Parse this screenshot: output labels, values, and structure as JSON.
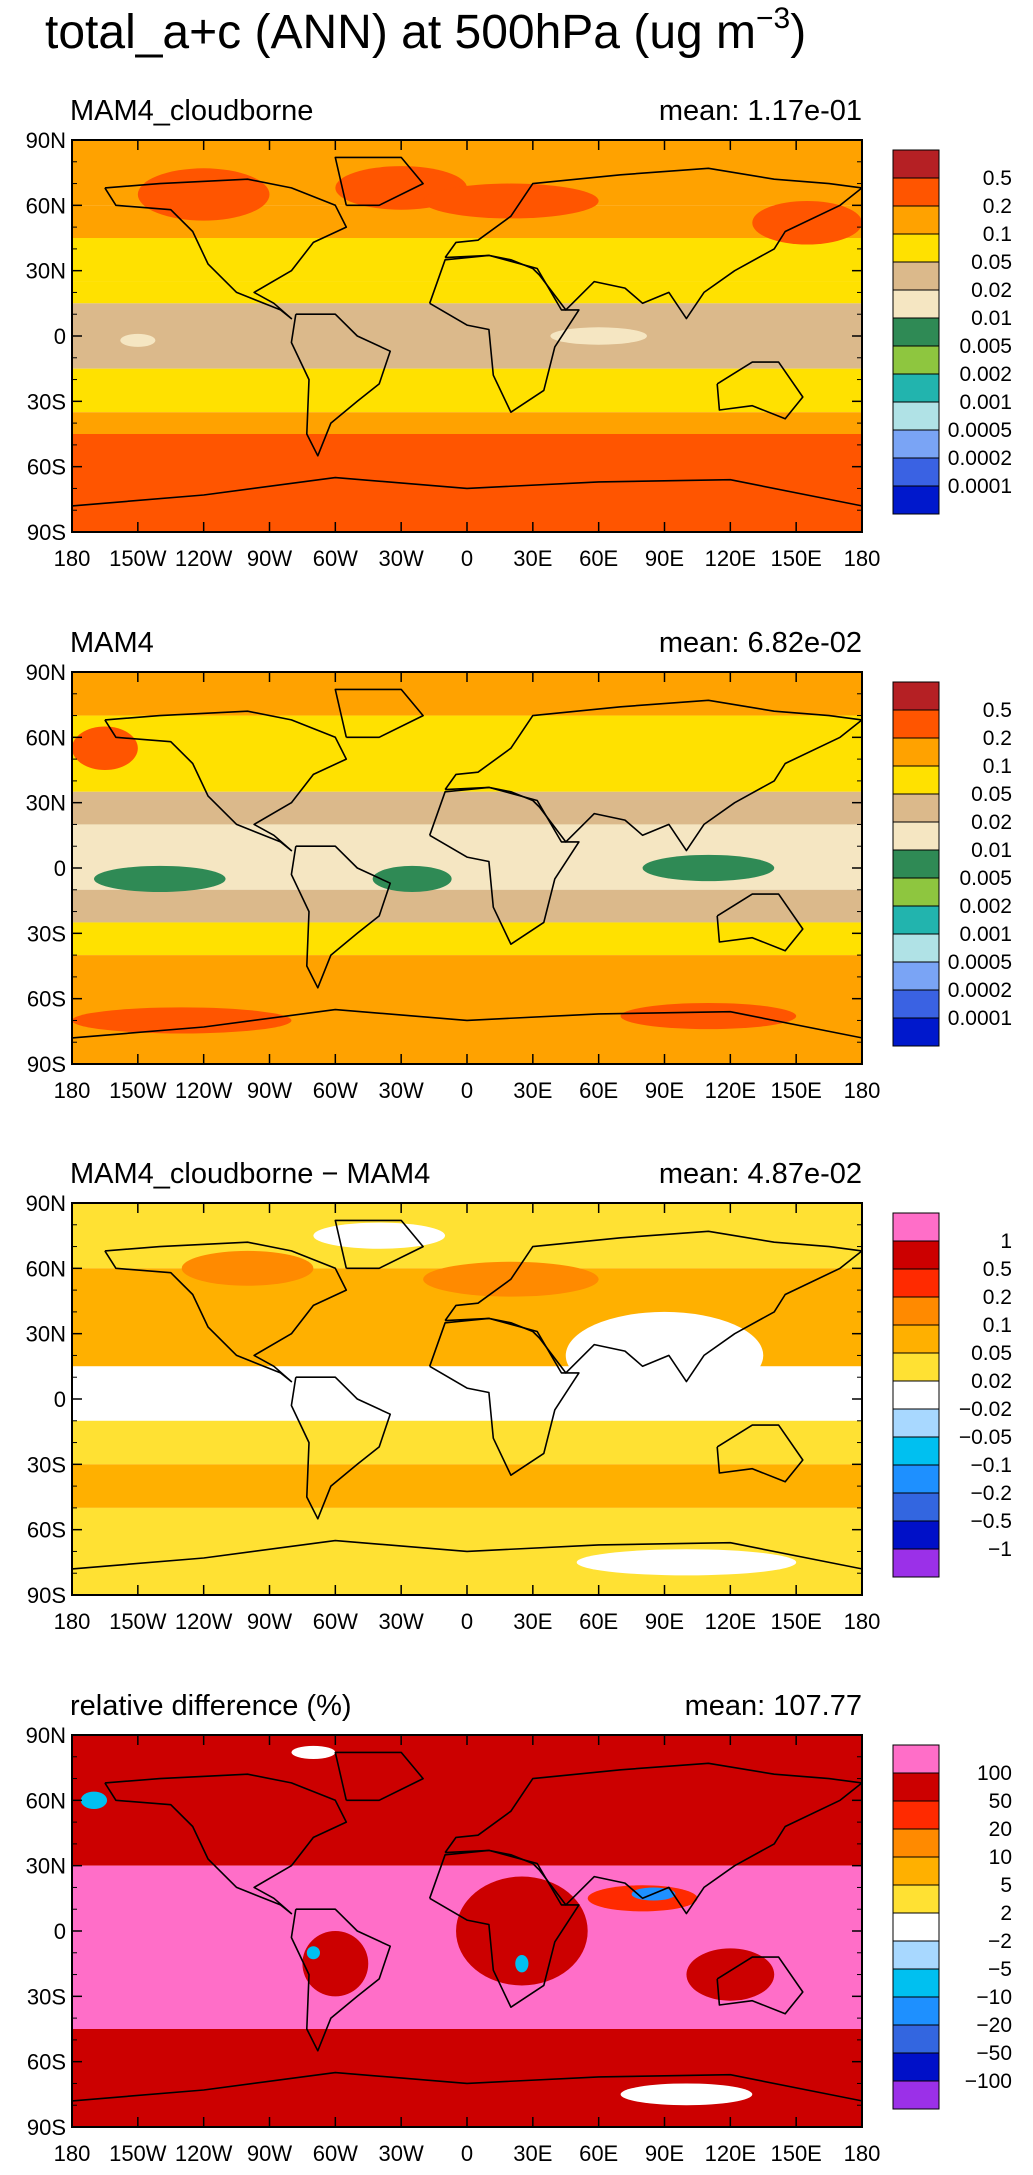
{
  "figure": {
    "title_main": "total_a+c (ANN) at 500hPa (ug m",
    "title_exp": "−3",
    "title_close": ")"
  },
  "axes": {
    "lat_ticks": [
      "90N",
      "60N",
      "30N",
      "0",
      "30S",
      "60S",
      "90S"
    ],
    "lon_ticks": [
      "180",
      "150W",
      "120W",
      "90W",
      "60W",
      "30W",
      "0",
      "30E",
      "60E",
      "90E",
      "120E",
      "150E",
      "180"
    ]
  },
  "colors": {
    "ocean_dust": "#d8b98c",
    "land_line": "#000000",
    "ramp_conc": [
      "#0018cc",
      "#3a62e3",
      "#7aa4f5",
      "#b0e2e6",
      "#22b4ae",
      "#8ec63f",
      "#2f8a55",
      "#f5e6c2",
      "#dbb98b",
      "#ffe100",
      "#ffa200",
      "#ff5500",
      "#b52024"
    ],
    "ramp_diff": [
      "#9b30e8",
      "#0010c8",
      "#3366e0",
      "#1e90ff",
      "#00c0f0",
      "#a8d8ff",
      "#ffffff",
      "#ffe133",
      "#ffb000",
      "#ff8a00",
      "#ff2a00",
      "#cc0000",
      "#ff6ec8"
    ]
  },
  "panels": [
    {
      "id": "mam4-cloudborne",
      "left_title": "MAM4_cloudborne",
      "right_title": "mean:  1.17e-01",
      "colorbar": {
        "labels": [
          "0.5",
          "0.2",
          "0.1",
          "0.05",
          "0.02",
          "0.01",
          "0.005",
          "0.002",
          "0.001",
          "0.0005",
          "0.0002",
          "0.0001"
        ],
        "colors": [
          "#b52024",
          "#ff5500",
          "#ffa200",
          "#ffe100",
          "#dbb98b",
          "#f5e6c2",
          "#2f8a55",
          "#8ec63f",
          "#22b4ae",
          "#b0e2e6",
          "#7aa4f5",
          "#3a62e3",
          "#0018cc"
        ]
      },
      "bands": [
        {
          "lat": [
            60,
            90
          ],
          "color": "#ffa200"
        },
        {
          "lat": [
            45,
            60
          ],
          "color": "#ffa200"
        },
        {
          "lat": [
            25,
            45
          ],
          "color": "#ffe100"
        },
        {
          "lat": [
            15,
            25
          ],
          "color": "#ffe100"
        },
        {
          "lat": [
            -15,
            15
          ],
          "color": "#dbb98b"
        },
        {
          "lat": [
            -35,
            -15
          ],
          "color": "#ffe100"
        },
        {
          "lat": [
            -45,
            -35
          ],
          "color": "#ffa200"
        },
        {
          "lat": [
            -90,
            -45
          ],
          "color": "#ff5500"
        }
      ],
      "blobs": [
        {
          "lon": -30,
          "lat": 68,
          "rx": 30,
          "ry": 10,
          "color": "#ff5500"
        },
        {
          "lon": 20,
          "lat": 62,
          "rx": 40,
          "ry": 8,
          "color": "#ff5500"
        },
        {
          "lon": 155,
          "lat": 52,
          "rx": 25,
          "ry": 10,
          "color": "#ff5500"
        },
        {
          "lon": -120,
          "lat": 65,
          "rx": 30,
          "ry": 12,
          "color": "#ff5500"
        },
        {
          "lon": -150,
          "lat": -2,
          "rx": 8,
          "ry": 3,
          "color": "#f5e6c2"
        },
        {
          "lon": 60,
          "lat": 0,
          "rx": 22,
          "ry": 4,
          "color": "#f5e6c2"
        }
      ]
    },
    {
      "id": "mam4",
      "left_title": "MAM4",
      "right_title": "mean:  6.82e-02",
      "colorbar": {
        "labels": [
          "0.5",
          "0.2",
          "0.1",
          "0.05",
          "0.02",
          "0.01",
          "0.005",
          "0.002",
          "0.001",
          "0.0005",
          "0.0002",
          "0.0001"
        ],
        "colors": [
          "#b52024",
          "#ff5500",
          "#ffa200",
          "#ffe100",
          "#dbb98b",
          "#f5e6c2",
          "#2f8a55",
          "#8ec63f",
          "#22b4ae",
          "#b0e2e6",
          "#7aa4f5",
          "#3a62e3",
          "#0018cc"
        ]
      },
      "bands": [
        {
          "lat": [
            70,
            90
          ],
          "color": "#ffa200"
        },
        {
          "lat": [
            35,
            70
          ],
          "color": "#ffe100"
        },
        {
          "lat": [
            20,
            35
          ],
          "color": "#dbb98b"
        },
        {
          "lat": [
            -10,
            20
          ],
          "color": "#f5e6c2"
        },
        {
          "lat": [
            -25,
            -10
          ],
          "color": "#dbb98b"
        },
        {
          "lat": [
            -40,
            -25
          ],
          "color": "#ffe100"
        },
        {
          "lat": [
            -90,
            -40
          ],
          "color": "#ffa200"
        }
      ],
      "blobs": [
        {
          "lon": -140,
          "lat": -5,
          "rx": 30,
          "ry": 6,
          "color": "#2f8a55"
        },
        {
          "lon": -25,
          "lat": -5,
          "rx": 18,
          "ry": 6,
          "color": "#2f8a55"
        },
        {
          "lon": 110,
          "lat": 0,
          "rx": 30,
          "ry": 6,
          "color": "#2f8a55"
        },
        {
          "lon": -165,
          "lat": 55,
          "rx": 15,
          "ry": 10,
          "color": "#ff5500"
        },
        {
          "lon": 110,
          "lat": -68,
          "rx": 40,
          "ry": 6,
          "color": "#ff5500"
        },
        {
          "lon": -130,
          "lat": -70,
          "rx": 50,
          "ry": 6,
          "color": "#ff5500"
        }
      ]
    },
    {
      "id": "difference",
      "left_title": "MAM4_cloudborne − MAM4",
      "right_title": "mean:  4.87e-02",
      "colorbar": {
        "labels": [
          "1",
          "0.5",
          "0.2",
          "0.1",
          "0.05",
          "0.02",
          "−0.02",
          "−0.05",
          "−0.1",
          "−0.2",
          "−0.5",
          "−1"
        ],
        "colors": [
          "#ff6ec8",
          "#cc0000",
          "#ff2a00",
          "#ff8a00",
          "#ffb000",
          "#ffe133",
          "#ffffff",
          "#a8d8ff",
          "#00c0f0",
          "#1e90ff",
          "#3366e0",
          "#0010c8",
          "#9b30e8"
        ]
      },
      "bands": [
        {
          "lat": [
            60,
            90
          ],
          "color": "#ffe133"
        },
        {
          "lat": [
            15,
            60
          ],
          "color": "#ffb000"
        },
        {
          "lat": [
            -10,
            15
          ],
          "color": "#ffffff"
        },
        {
          "lat": [
            -30,
            -10
          ],
          "color": "#ffe133"
        },
        {
          "lat": [
            -50,
            -30
          ],
          "color": "#ffb000"
        },
        {
          "lat": [
            -90,
            -50
          ],
          "color": "#ffe133"
        }
      ],
      "blobs": [
        {
          "lon": -100,
          "lat": 60,
          "rx": 30,
          "ry": 8,
          "color": "#ff8a00"
        },
        {
          "lon": 20,
          "lat": 55,
          "rx": 40,
          "ry": 8,
          "color": "#ff8a00"
        },
        {
          "lon": 90,
          "lat": 20,
          "rx": 45,
          "ry": 20,
          "color": "#ffffff"
        },
        {
          "lon": 100,
          "lat": -75,
          "rx": 50,
          "ry": 6,
          "color": "#ffffff"
        },
        {
          "lon": -40,
          "lat": 75,
          "rx": 30,
          "ry": 6,
          "color": "#ffffff"
        }
      ]
    },
    {
      "id": "relative-difference",
      "left_title": "relative difference (%)",
      "right_title": "mean:  107.77",
      "colorbar": {
        "labels": [
          "100",
          "50",
          "20",
          "10",
          "5",
          "2",
          "−2",
          "−5",
          "−10",
          "−20",
          "−50",
          "−100"
        ],
        "colors": [
          "#ff6ec8",
          "#cc0000",
          "#ff2a00",
          "#ff8a00",
          "#ffb000",
          "#ffe133",
          "#ffffff",
          "#a8d8ff",
          "#00c0f0",
          "#1e90ff",
          "#3366e0",
          "#0010c8",
          "#9b30e8"
        ]
      },
      "bands": [
        {
          "lat": [
            30,
            90
          ],
          "color": "#cc0000"
        },
        {
          "lat": [
            -45,
            30
          ],
          "color": "#ff6ec8"
        },
        {
          "lat": [
            -90,
            -45
          ],
          "color": "#cc0000"
        }
      ],
      "blobs": [
        {
          "lon": -60,
          "lat": -15,
          "rx": 15,
          "ry": 15,
          "color": "#cc0000"
        },
        {
          "lon": 25,
          "lat": 0,
          "rx": 30,
          "ry": 25,
          "color": "#cc0000"
        },
        {
          "lon": 120,
          "lat": -20,
          "rx": 20,
          "ry": 12,
          "color": "#cc0000"
        },
        {
          "lon": 80,
          "lat": 15,
          "rx": 25,
          "ry": 6,
          "color": "#ff2a00"
        },
        {
          "lon": 85,
          "lat": 17,
          "rx": 10,
          "ry": 3,
          "color": "#1e90ff"
        },
        {
          "lon": 100,
          "lat": -75,
          "rx": 30,
          "ry": 5,
          "color": "#ffffff"
        },
        {
          "lon": -70,
          "lat": 82,
          "rx": 10,
          "ry": 3,
          "color": "#ffffff"
        },
        {
          "lon": -170,
          "lat": 60,
          "rx": 6,
          "ry": 4,
          "color": "#00c0f0"
        },
        {
          "lon": -70,
          "lat": -10,
          "rx": 3,
          "ry": 3,
          "color": "#00c0f0"
        },
        {
          "lon": 25,
          "lat": -15,
          "rx": 3,
          "ry": 4,
          "color": "#00c0f0"
        }
      ]
    }
  ]
}
